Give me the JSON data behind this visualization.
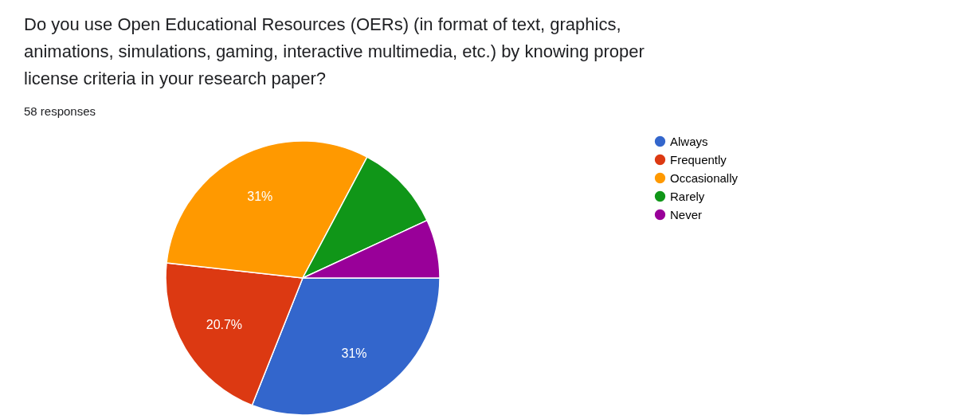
{
  "chart_data": {
    "type": "pie",
    "title": "Do you use Open Educational Resources (OERs) (in format of text, graphics, animations, simulations, gaming, interactive multimedia, etc.) by knowing proper license criteria in your research paper?",
    "subtitle": "58 responses",
    "categories": [
      "Always",
      "Frequently",
      "Occasionally",
      "Rarely",
      "Never"
    ],
    "values": [
      31,
      20.7,
      31,
      10.3,
      6.9
    ],
    "colors": [
      "#3366cc",
      "#dc3912",
      "#ff9900",
      "#109618",
      "#990099"
    ],
    "value_labels": [
      "31%",
      "20.7%",
      "31%",
      null,
      null
    ],
    "legend": "right"
  }
}
